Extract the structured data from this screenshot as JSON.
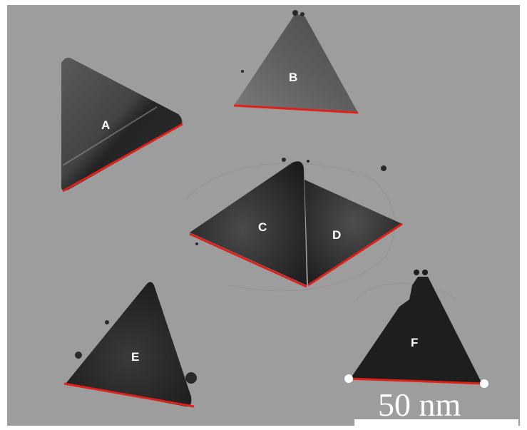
{
  "image": {
    "background_color": "#9d9d9d",
    "particle_color": "#1f1f1f",
    "edge_marker_color": "#e0201a"
  },
  "particles": [
    {
      "label": "A"
    },
    {
      "label": "B"
    },
    {
      "label": "C"
    },
    {
      "label": "D"
    },
    {
      "label": "E"
    },
    {
      "label": "F"
    }
  ],
  "scale_bar": {
    "label": "50 nm"
  }
}
